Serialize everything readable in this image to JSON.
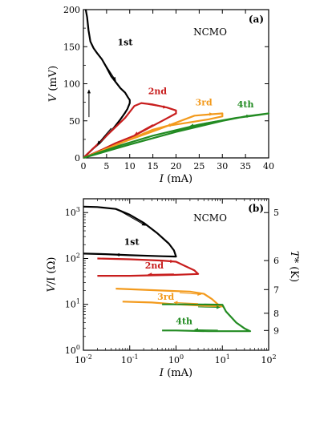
{
  "chart_data": [
    {
      "panel": "(a)",
      "type": "line",
      "sample": "NCMO",
      "xlabel": "I (mA)",
      "ylabel": "V (mV)",
      "xlim": [
        0,
        40
      ],
      "ylim": [
        0,
        200
      ],
      "x_ticks": [
        "0",
        "5",
        "10",
        "15",
        "20",
        "25",
        "30",
        "35",
        "40"
      ],
      "y_ticks": [
        "0",
        "50",
        "100",
        "150",
        "200"
      ],
      "colors": {
        "1st": "#000000",
        "2nd": "#c81e1e",
        "3rd": "#f39a1c",
        "4th": "#228b22"
      },
      "series": [
        {
          "name": "1st",
          "color": "#000000",
          "points": [
            [
              0.5,
              200
            ],
            [
              0.8,
              190
            ],
            [
              1.1,
              172
            ],
            [
              1.5,
              157
            ],
            [
              2.2,
              148
            ],
            [
              3,
              141
            ],
            [
              4,
              133
            ],
            [
              5,
              122
            ],
            [
              6,
              110
            ],
            [
              7,
              102
            ],
            [
              8,
              94
            ],
            [
              9,
              88
            ],
            [
              9.6,
              82
            ],
            [
              10,
              78
            ],
            [
              10,
              74
            ],
            [
              9.5,
              66
            ],
            [
              9,
              61
            ],
            [
              8,
              52
            ],
            [
              6.5,
              40
            ],
            [
              5,
              30
            ],
            [
              3.5,
              20
            ],
            [
              2,
              12
            ],
            [
              0.5,
              3
            ],
            [
              0,
              0
            ]
          ]
        },
        {
          "name": "2nd",
          "color": "#c81e1e",
          "points": [
            [
              0,
              0
            ],
            [
              3,
              18
            ],
            [
              6,
              36
            ],
            [
              9,
              54
            ],
            [
              11,
              70
            ],
            [
              12.5,
              74
            ],
            [
              15,
              72
            ],
            [
              18,
              68
            ],
            [
              20,
              64
            ],
            [
              20,
              60
            ],
            [
              17,
              50
            ],
            [
              14,
              40
            ],
            [
              11,
              30
            ],
            [
              7,
              20
            ],
            [
              4,
              11
            ],
            [
              0,
              0
            ]
          ]
        },
        {
          "name": "3rd",
          "color": "#f39a1c",
          "points": [
            [
              0,
              0
            ],
            [
              8,
              20
            ],
            [
              16,
              38
            ],
            [
              21,
              50
            ],
            [
              24,
              57
            ],
            [
              28,
              59
            ],
            [
              30,
              60
            ],
            [
              30,
              56
            ],
            [
              27,
              52
            ],
            [
              24,
              49
            ],
            [
              21,
              46
            ],
            [
              18,
              43
            ],
            [
              15,
              38
            ],
            [
              10,
              25
            ],
            [
              5,
              12
            ],
            [
              0,
              0
            ]
          ]
        },
        {
          "name": "4th",
          "color": "#228b22",
          "points": [
            [
              0,
              0
            ],
            [
              10,
              18
            ],
            [
              20,
              35
            ],
            [
              30,
              50
            ],
            [
              35,
              56
            ],
            [
              40,
              60
            ],
            [
              38,
              58
            ],
            [
              33,
              54
            ],
            [
              25,
              45
            ],
            [
              15,
              30
            ],
            [
              8,
              17
            ],
            [
              0,
              0
            ]
          ]
        }
      ],
      "labels": [
        "1st",
        "2nd",
        "3rd",
        "4th"
      ]
    },
    {
      "panel": "(b)",
      "type": "line",
      "sample": "NCMO",
      "xlabel": "I (mA)",
      "ylabel": "V/I (Ω)",
      "right_label": "T* (K)",
      "xscale": "log",
      "yscale": "log",
      "xlim": [
        0.01,
        100
      ],
      "ylim": [
        1,
        2000
      ],
      "x_ticks": [
        {
          "base": "10",
          "exp": "-2"
        },
        {
          "base": "10",
          "exp": "-1"
        },
        {
          "base": "10",
          "exp": "0"
        },
        {
          "base": "10",
          "exp": "1"
        },
        {
          "base": "10",
          "exp": "2"
        }
      ],
      "y_ticks": [
        {
          "base": "10",
          "exp": "0"
        },
        {
          "base": "10",
          "exp": "1"
        },
        {
          "base": "10",
          "exp": "2"
        },
        {
          "base": "10",
          "exp": "3"
        }
      ],
      "right_ticks": [
        {
          "label": "5",
          "ohm": 1000
        },
        {
          "label": "6",
          "ohm": 90
        },
        {
          "label": "7",
          "ohm": 21
        },
        {
          "label": "8",
          "ohm": 6.4
        },
        {
          "label": "9",
          "ohm": 2.7
        }
      ],
      "series": [
        {
          "name": "1st",
          "color": "#000000",
          "points": [
            [
              0.01,
              1350
            ],
            [
              0.02,
              1320
            ],
            [
              0.05,
              1200
            ],
            [
              0.1,
              900
            ],
            [
              0.2,
              600
            ],
            [
              0.4,
              350
            ],
            [
              0.7,
              210
            ],
            [
              0.9,
              150
            ],
            [
              1,
              110
            ],
            [
              0.5,
              112
            ],
            [
              0.1,
              118
            ],
            [
              0.03,
              124
            ],
            [
              0.01,
              128
            ]
          ]
        },
        {
          "name": "2nd",
          "color": "#c81e1e",
          "points": [
            [
              0.02,
              100
            ],
            [
              0.1,
              96
            ],
            [
              0.5,
              90
            ],
            [
              1,
              85
            ],
            [
              1.5,
              70
            ],
            [
              2.5,
              55
            ],
            [
              3,
              46
            ],
            [
              1,
              44
            ],
            [
              0.3,
              43
            ],
            [
              0.1,
              42
            ],
            [
              0.02,
              42
            ]
          ]
        },
        {
          "name": "3rd",
          "color": "#f39a1c",
          "points": [
            [
              0.05,
              22
            ],
            [
              0.5,
              20
            ],
            [
              2,
              19
            ],
            [
              4,
              17
            ],
            [
              6,
              13
            ],
            [
              8,
              10
            ],
            [
              10,
              9
            ],
            [
              3,
              9.5
            ],
            [
              1,
              10
            ],
            [
              0.3,
              11
            ],
            [
              0.07,
              11.5
            ]
          ]
        },
        {
          "name": "4th",
          "color": "#228b22",
          "points": [
            [
              0.5,
              10
            ],
            [
              2,
              10
            ],
            [
              10,
              9.8
            ],
            [
              12,
              7
            ],
            [
              20,
              4
            ],
            [
              30,
              3
            ],
            [
              40,
              2.6
            ],
            [
              20,
              2.6
            ],
            [
              5,
              2.6
            ],
            [
              1,
              2.7
            ],
            [
              0.5,
              2.7
            ]
          ]
        }
      ],
      "labels": [
        "1st",
        "2nd",
        "3rd",
        "4th"
      ]
    }
  ]
}
